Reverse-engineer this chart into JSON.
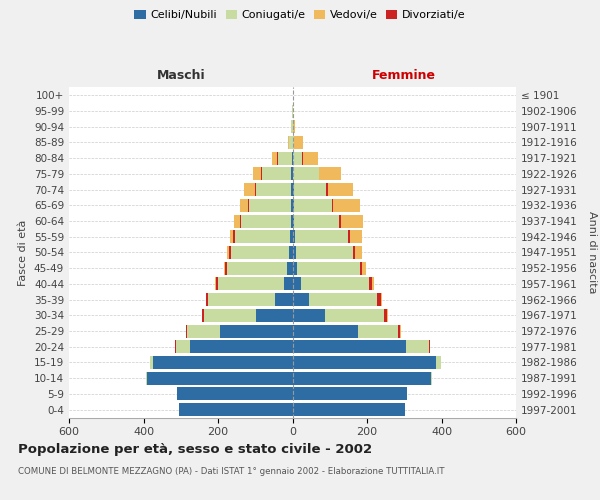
{
  "age_groups": [
    "0-4",
    "5-9",
    "10-14",
    "15-19",
    "20-24",
    "25-29",
    "30-34",
    "35-39",
    "40-44",
    "45-49",
    "50-54",
    "55-59",
    "60-64",
    "65-69",
    "70-74",
    "75-79",
    "80-84",
    "85-89",
    "90-94",
    "95-99",
    "100+"
  ],
  "birth_years": [
    "1997-2001",
    "1992-1996",
    "1987-1991",
    "1982-1986",
    "1977-1981",
    "1972-1976",
    "1967-1971",
    "1962-1966",
    "1957-1961",
    "1952-1956",
    "1947-1951",
    "1942-1946",
    "1937-1941",
    "1932-1936",
    "1927-1931",
    "1922-1926",
    "1917-1921",
    "1912-1916",
    "1907-1911",
    "1902-1906",
    "≤ 1901"
  ],
  "male_celibi": [
    305,
    310,
    390,
    375,
    275,
    195,
    98,
    48,
    22,
    14,
    9,
    7,
    5,
    5,
    4,
    3,
    2,
    0,
    0,
    0,
    0
  ],
  "male_coniugati": [
    0,
    0,
    2,
    8,
    38,
    88,
    140,
    178,
    178,
    162,
    157,
    148,
    132,
    112,
    95,
    78,
    38,
    9,
    3,
    1,
    0
  ],
  "male_vedovi": [
    0,
    0,
    0,
    0,
    0,
    1,
    1,
    2,
    2,
    3,
    4,
    7,
    14,
    22,
    28,
    22,
    14,
    4,
    1,
    0,
    0
  ],
  "male_divorziati": [
    0,
    0,
    0,
    0,
    2,
    3,
    5,
    5,
    5,
    5,
    5,
    5,
    5,
    3,
    3,
    3,
    2,
    0,
    0,
    0,
    0
  ],
  "female_nubili": [
    302,
    308,
    372,
    385,
    305,
    175,
    88,
    45,
    22,
    13,
    9,
    6,
    4,
    4,
    3,
    2,
    1,
    0,
    0,
    0,
    0
  ],
  "female_coniugate": [
    0,
    0,
    2,
    13,
    62,
    108,
    158,
    183,
    183,
    168,
    153,
    143,
    122,
    103,
    88,
    68,
    24,
    5,
    2,
    0,
    0
  ],
  "female_vedove": [
    0,
    0,
    0,
    0,
    1,
    2,
    2,
    3,
    5,
    10,
    20,
    32,
    57,
    72,
    68,
    58,
    42,
    22,
    4,
    1,
    0
  ],
  "female_divorziate": [
    0,
    0,
    0,
    0,
    2,
    5,
    8,
    10,
    8,
    5,
    5,
    5,
    5,
    3,
    3,
    2,
    2,
    0,
    0,
    0,
    0
  ],
  "color_celibi": "#2e6da4",
  "color_coniugati": "#c8dba0",
  "color_vedovi": "#f0b95c",
  "color_divorziati": "#cc2222",
  "title": "Popolazione per età, sesso e stato civile - 2002",
  "subtitle": "COMUNE DI BELMONTE MEZZAGNO (PA) - Dati ISTAT 1° gennaio 2002 - Elaborazione TUTTITALIA.IT",
  "label_maschi": "Maschi",
  "label_femmine": "Femmine",
  "ylabel_left": "Fasce di età",
  "ylabel_right": "Anni di nascita",
  "legend_labels": [
    "Celibi/Nubili",
    "Coniugati/e",
    "Vedovi/e",
    "Divorziati/e"
  ],
  "xlim": 600,
  "bg_color": "#f0f0f0",
  "plot_bg": "#ffffff",
  "grid_color": "#cccccc",
  "maschi_color": "#333333",
  "femmine_color": "#cc0000"
}
